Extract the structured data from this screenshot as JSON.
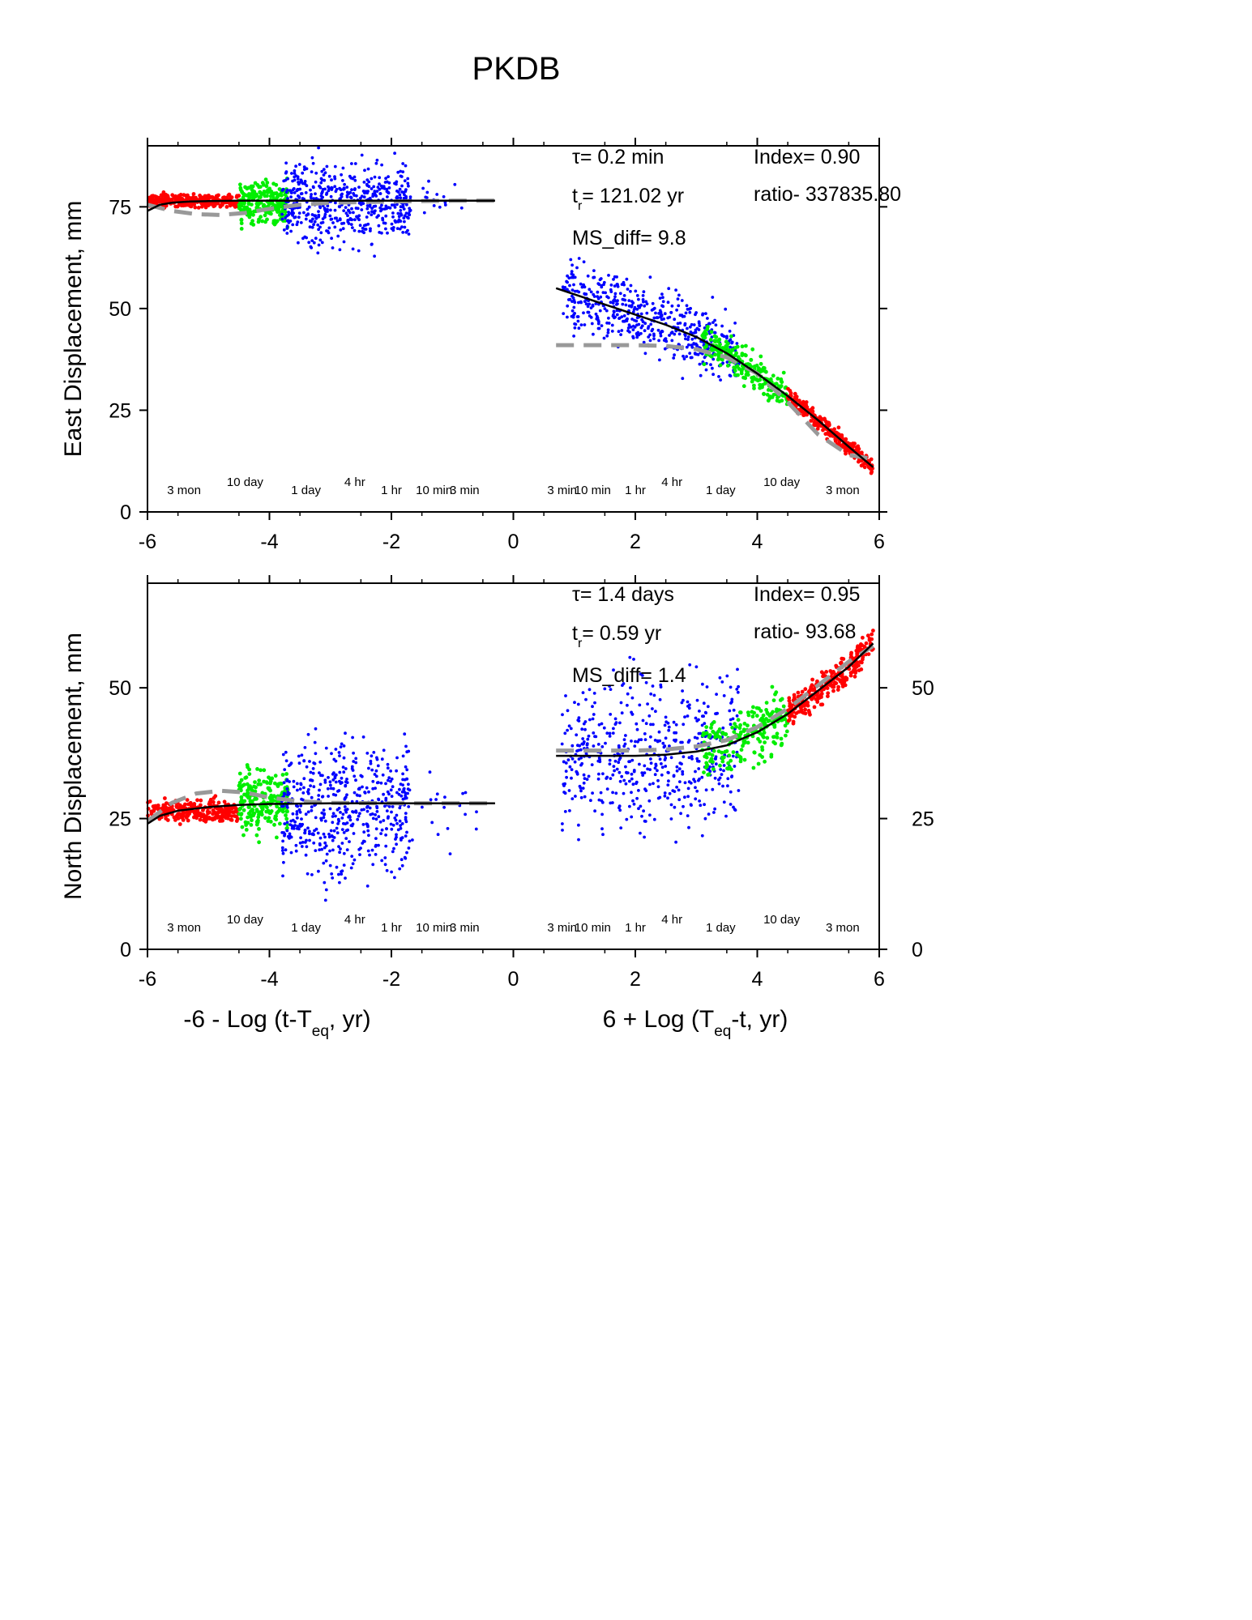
{
  "title": "PKDB",
  "colors": {
    "early": "#ff0000",
    "mid": "#00ee00",
    "late": "#0000ff",
    "fit": "#000000",
    "model": "#999999"
  },
  "chart_data": [
    {
      "type": "scatter",
      "panel": "east",
      "ylabel": "East Displacement, mm",
      "xlim": [
        -6,
        6
      ],
      "ylim": [
        0,
        90
      ],
      "xticks": [
        "-6",
        "-4",
        "-2",
        "0",
        "2",
        "4",
        "6"
      ],
      "yticks": [
        "0",
        "25",
        "50",
        "75"
      ],
      "right_yticks": [],
      "annotations": {
        "tau": "τ= 0.2 min",
        "tr_prefix": "t",
        "tr_sub": "r",
        "tr_value": "= 121.02 yr",
        "ms_diff": "MS_diff= 9.8",
        "index": "Index= 0.90",
        "ratio": "ratio- 337835.80"
      },
      "time_labels": [
        {
          "x": -5.4,
          "text": "3 mon"
        },
        {
          "x": -4.4,
          "text": "10 day"
        },
        {
          "x": -3.4,
          "text": "1 day"
        },
        {
          "x": -2.6,
          "text": "4 hr"
        },
        {
          "x": -2.0,
          "text": "1 hr"
        },
        {
          "x": -1.3,
          "text": "10 min"
        },
        {
          "x": -0.8,
          "text": "3 min"
        },
        {
          "x": 0.8,
          "text": "3 min"
        },
        {
          "x": 1.3,
          "text": "10 min"
        },
        {
          "x": 2.0,
          "text": "1 hr"
        },
        {
          "x": 2.6,
          "text": "4 hr"
        },
        {
          "x": 3.4,
          "text": "1 day"
        },
        {
          "x": 4.4,
          "text": "10 day"
        },
        {
          "x": 5.4,
          "text": "3 mon"
        }
      ],
      "series": [
        {
          "group": "early",
          "side": "left",
          "x_range": [
            -6.0,
            -4.5
          ],
          "center": 76.5,
          "spread": 1.2,
          "count": 260
        },
        {
          "group": "mid",
          "side": "left",
          "x_range": [
            -4.5,
            -3.7
          ],
          "center": 76,
          "spread": 3.5,
          "count": 220
        },
        {
          "group": "late",
          "side": "left",
          "x_range": [
            -3.8,
            -1.7
          ],
          "center": 76,
          "spread": 7,
          "count": 520
        },
        {
          "group": "late",
          "side": "left_sparse",
          "x_range": [
            -1.7,
            -0.6
          ],
          "center": 77,
          "spread": 4,
          "count": 18
        },
        {
          "group": "late",
          "side": "right",
          "x_range": [
            0.8,
            3.7
          ],
          "center": 42,
          "spread": 6,
          "count": 520
        },
        {
          "group": "mid",
          "side": "right",
          "x_range": [
            3.1,
            4.5
          ],
          "center": 33,
          "spread": 3,
          "count": 220
        },
        {
          "group": "early",
          "side": "right",
          "x_range": [
            4.5,
            5.9
          ],
          "center": 17,
          "spread": 1.5,
          "count": 260
        }
      ],
      "fit_left": {
        "x": [
          -6.0,
          -5.8,
          -5.6,
          -5.3,
          -5.0,
          -4.5,
          -4.0,
          -3.0,
          -2.0,
          -1.0,
          -0.3
        ],
        "y": [
          74.0,
          75.5,
          76.0,
          76.3,
          76.4,
          76.5,
          76.5,
          76.5,
          76.5,
          76.5,
          76.5
        ]
      },
      "fit_right": {
        "x": [
          0.7,
          1.5,
          2.0,
          2.5,
          3.0,
          3.5,
          4.0,
          4.5,
          5.0,
          5.5,
          5.9
        ],
        "y": [
          55.0,
          51.0,
          48.5,
          46.0,
          43.0,
          39.0,
          34.0,
          28.5,
          22.5,
          16.0,
          11.0
        ]
      },
      "model_left": {
        "x": [
          -6.0,
          -5.6,
          -5.2,
          -4.8,
          -4.4,
          -4.0,
          -3.5,
          -3.0,
          -2.0,
          -1.0,
          -0.3
        ],
        "y": [
          75.5,
          74.0,
          73.2,
          73.0,
          73.5,
          74.5,
          75.5,
          76.0,
          76.3,
          76.5,
          76.5
        ]
      },
      "model_right": {
        "x": [
          0.7,
          1.5,
          2.0,
          2.5,
          3.0,
          3.5,
          4.0,
          4.5,
          5.0,
          5.5,
          5.9
        ],
        "y": [
          41.0,
          41.0,
          41.0,
          40.8,
          40.0,
          38.0,
          34.0,
          27.0,
          19.0,
          14.0,
          13.0
        ]
      },
      "legend": "none"
    },
    {
      "type": "scatter",
      "panel": "north",
      "ylabel": "North Displacement, mm",
      "xlim": [
        -6,
        6
      ],
      "ylim": [
        0,
        70
      ],
      "xticks": [
        "-6",
        "-4",
        "-2",
        "0",
        "2",
        "4",
        "6"
      ],
      "yticks": [
        "0",
        "25",
        "50"
      ],
      "right_yticks": [
        "0",
        "25",
        "50"
      ],
      "annotations": {
        "tau": "τ= 1.4 days",
        "tr_prefix": "t",
        "tr_sub": "r",
        "tr_value": "= 0.59 yr",
        "ms_diff": "MS_diff= 1.4",
        "index": "Index= 0.95",
        "ratio": "ratio- 93.68"
      },
      "time_labels": [
        {
          "x": -5.4,
          "text": "3 mon"
        },
        {
          "x": -4.4,
          "text": "10 day"
        },
        {
          "x": -3.4,
          "text": "1 day"
        },
        {
          "x": -2.6,
          "text": "4 hr"
        },
        {
          "x": -2.0,
          "text": "1 hr"
        },
        {
          "x": -1.3,
          "text": "10 min"
        },
        {
          "x": -0.8,
          "text": "3 min"
        },
        {
          "x": 0.8,
          "text": "3 min"
        },
        {
          "x": 1.3,
          "text": "10 min"
        },
        {
          "x": 2.0,
          "text": "1 hr"
        },
        {
          "x": 2.6,
          "text": "4 hr"
        },
        {
          "x": 3.4,
          "text": "1 day"
        },
        {
          "x": 4.4,
          "text": "10 day"
        },
        {
          "x": 5.4,
          "text": "3 mon"
        }
      ],
      "series": [
        {
          "group": "early",
          "side": "left",
          "x_range": [
            -6.0,
            -4.5
          ],
          "center": 26.5,
          "spread": 1.5,
          "count": 260
        },
        {
          "group": "mid",
          "side": "left",
          "x_range": [
            -4.5,
            -3.7
          ],
          "center": 28,
          "spread": 4,
          "count": 220
        },
        {
          "group": "late",
          "side": "left",
          "x_range": [
            -3.8,
            -1.7
          ],
          "center": 27,
          "spread": 9,
          "count": 520
        },
        {
          "group": "late",
          "side": "left_sparse",
          "x_range": [
            -1.7,
            -0.6
          ],
          "center": 28,
          "spread": 6,
          "count": 18
        },
        {
          "group": "late",
          "side": "right",
          "x_range": [
            0.8,
            3.7
          ],
          "center": 35,
          "spread": 10,
          "count": 520
        },
        {
          "group": "mid",
          "side": "right",
          "x_range": [
            3.1,
            4.5
          ],
          "center": 41,
          "spread": 4,
          "count": 220
        },
        {
          "group": "early",
          "side": "right",
          "x_range": [
            4.5,
            5.9
          ],
          "center": 52,
          "spread": 2,
          "count": 260
        }
      ],
      "fit_left": {
        "x": [
          -6.0,
          -5.8,
          -5.5,
          -5.0,
          -4.5,
          -4.0,
          -3.0,
          -2.0,
          -1.0,
          -0.3
        ],
        "y": [
          24.0,
          25.5,
          26.5,
          27.2,
          27.6,
          27.8,
          27.9,
          27.9,
          27.9,
          27.9
        ]
      },
      "fit_right": {
        "x": [
          0.7,
          1.5,
          2.0,
          2.5,
          3.0,
          3.5,
          4.0,
          4.5,
          5.0,
          5.5,
          5.9
        ],
        "y": [
          37.0,
          37.0,
          37.0,
          37.2,
          37.8,
          39.0,
          41.5,
          45.0,
          49.5,
          54.0,
          58.5
        ]
      },
      "model_left": {
        "x": [
          -6.0,
          -5.6,
          -5.2,
          -4.8,
          -4.4,
          -4.0,
          -3.5,
          -3.0,
          -2.0,
          -1.0,
          -0.3
        ],
        "y": [
          24.5,
          28.0,
          29.8,
          30.3,
          30.0,
          29.0,
          28.3,
          28.0,
          27.9,
          27.9,
          27.9
        ]
      },
      "model_right": {
        "x": [
          0.7,
          1.5,
          2.0,
          2.5,
          3.0,
          3.5,
          4.0,
          4.5,
          5.0,
          5.5,
          5.9
        ],
        "y": [
          38.0,
          38.0,
          38.0,
          38.2,
          38.8,
          40.0,
          42.5,
          46.0,
          50.5,
          55.0,
          58.0
        ]
      },
      "legend": "none"
    }
  ],
  "bottom_axis": {
    "left_label": "-6 - Log (t-T",
    "left_sub": "eq",
    "left_suffix": ", yr)",
    "right_label": "6 + Log (T",
    "right_sub": "eq",
    "right_suffix": "-t, yr)"
  }
}
